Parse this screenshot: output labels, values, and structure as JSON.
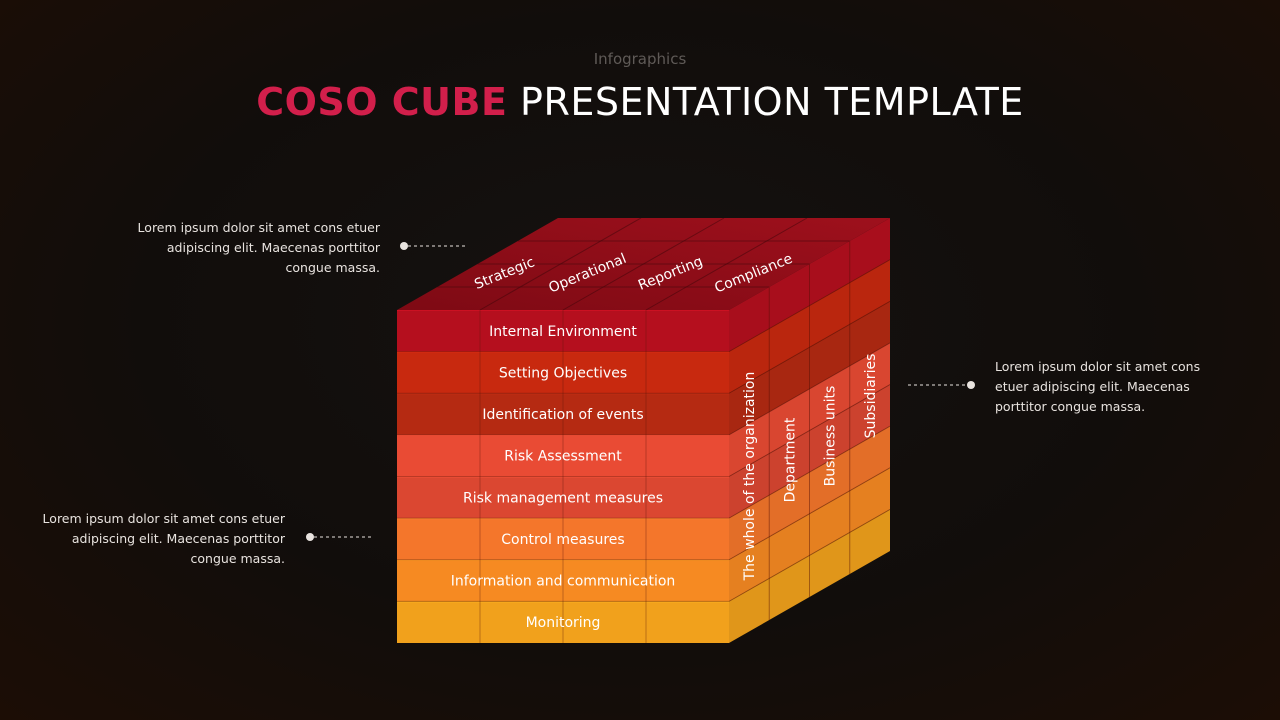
{
  "header": {
    "kicker": "Infographics",
    "title_accent": "COSO CUBE",
    "title_rest": "PRESENTATION TEMPLATE"
  },
  "notes": {
    "top_left": "Lorem ipsum dolor sit amet cons etuer adipiscing elit. Maecenas porttitor congue massa.",
    "bottom_left": "Lorem ipsum dolor sit amet cons etuer adipiscing elit. Maecenas porttitor congue massa.",
    "right": "Lorem ipsum dolor sit amet cons etuer adipiscing elit. Maecenas porttitor congue massa."
  },
  "cube": {
    "objectives": [
      "Strategic",
      "Operational",
      "Reporting",
      "Compliance"
    ],
    "components": [
      {
        "label": "Internal Environment",
        "color": "#b50f1e"
      },
      {
        "label": "Setting Objectives",
        "color": "#c8290f"
      },
      {
        "label": "Identification of events",
        "color": "#b52a12"
      },
      {
        "label": "Risk Assessment",
        "color": "#e94b34"
      },
      {
        "label": "Risk management measures",
        "color": "#db4731"
      },
      {
        "label": "Control measures",
        "color": "#f4762b"
      },
      {
        "label": "Information and communication",
        "color": "#f68a22"
      },
      {
        "label": "Monitoring",
        "color": "#f1a11c"
      }
    ],
    "units": [
      "The whole of the organization",
      "Department",
      "Business units",
      "Subsidiaries"
    ],
    "top_color": "#8e0c18"
  }
}
